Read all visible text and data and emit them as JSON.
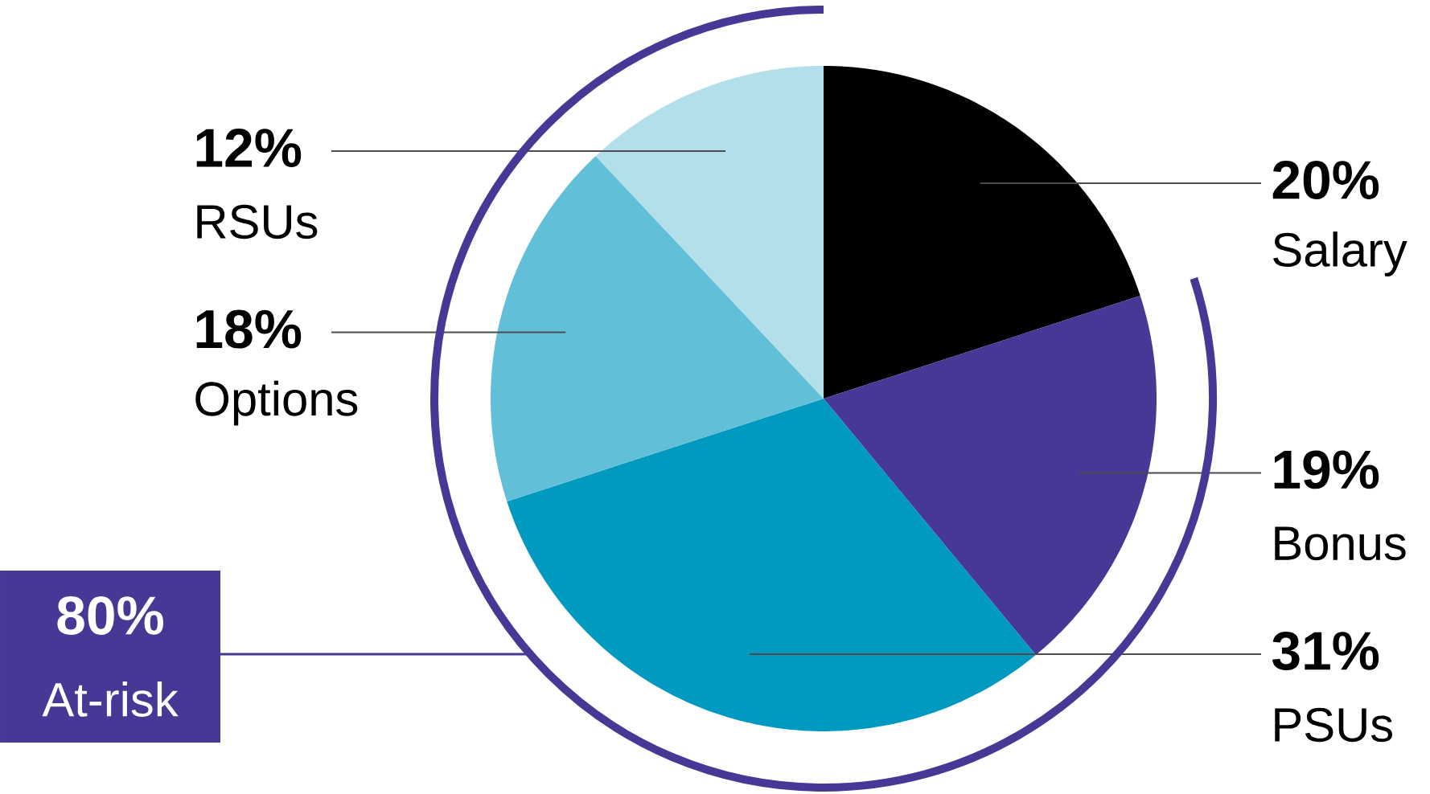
{
  "chart_data": {
    "type": "pie",
    "categories": [
      "Salary",
      "Bonus",
      "PSUs",
      "Options",
      "RSUs"
    ],
    "values": [
      20,
      19,
      31,
      18,
      12
    ],
    "value_labels": [
      "20%",
      "19%",
      "31%",
      "18%",
      "12%"
    ],
    "colors": [
      "#000000",
      "#473896",
      "#0099bf",
      "#62bfd8",
      "#b2dfea"
    ],
    "annotations": [
      "80%",
      "At-risk"
    ]
  }
}
